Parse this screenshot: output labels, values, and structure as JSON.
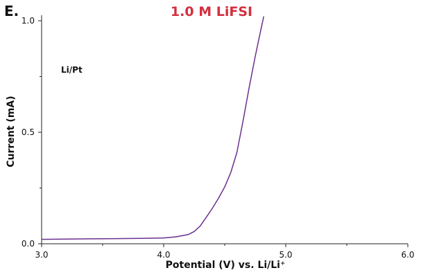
{
  "panel_label": "E.",
  "chart_data": {
    "type": "line",
    "title": "1.0 M LiFSI",
    "title_color": "#d32f3f",
    "xlabel": "Potential (V) vs. Li/Li⁺",
    "ylabel": "Current (mA)",
    "xlim": [
      3.0,
      6.0
    ],
    "ylim": [
      0.0,
      1.0
    ],
    "xticks": [
      "3.0",
      "4.0",
      "5.0",
      "6.0"
    ],
    "yticks": [
      "0.0",
      "0.5",
      "1.0"
    ],
    "grid": false,
    "annotations": [
      "Li/Pt"
    ],
    "series": [
      {
        "color": "#6a2f8e",
        "x": [
          3.0,
          3.2,
          3.4,
          3.6,
          3.8,
          4.0,
          4.1,
          4.2,
          4.25,
          4.3,
          4.35,
          4.4,
          4.45,
          4.5,
          4.55,
          4.6,
          4.65,
          4.7,
          4.75,
          4.8,
          4.82
        ],
        "y": [
          0.02,
          0.021,
          0.022,
          0.023,
          0.024,
          0.026,
          0.031,
          0.041,
          0.055,
          0.08,
          0.12,
          0.16,
          0.205,
          0.255,
          0.32,
          0.41,
          0.55,
          0.7,
          0.84,
          0.97,
          1.02
        ]
      }
    ]
  }
}
